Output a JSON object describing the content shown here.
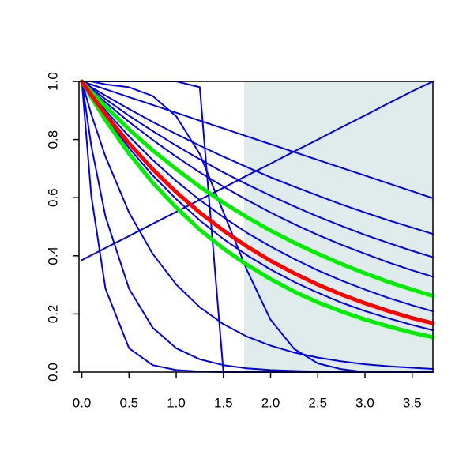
{
  "chart_data": {
    "type": "line",
    "xlim": [
      -0.03,
      3.72
    ],
    "ylim": [
      0,
      1
    ],
    "xticks": [
      {
        "value": 0,
        "label": "0.0"
      },
      {
        "value": 0.5,
        "label": "0.5"
      },
      {
        "value": 1,
        "label": "1.0"
      },
      {
        "value": 1.5,
        "label": "1.5"
      },
      {
        "value": 2,
        "label": "2.0"
      },
      {
        "value": 2.5,
        "label": "2.5"
      },
      {
        "value": 3,
        "label": "3.0"
      },
      {
        "value": 3.5,
        "label": "3.5"
      }
    ],
    "yticks": [
      {
        "value": 0,
        "label": "0.0"
      },
      {
        "value": 0.2,
        "label": "0.2"
      },
      {
        "value": 0.4,
        "label": "0.4"
      },
      {
        "value": 0.6,
        "label": "0.6"
      },
      {
        "value": 0.8,
        "label": "0.8"
      },
      {
        "value": 1,
        "label": "1.0"
      }
    ],
    "shaded_region": {
      "xmin": 1.72,
      "xmax": 3.72,
      "color": "#e0ecec"
    },
    "x": [
      0,
      0.1,
      0.25,
      0.5,
      0.75,
      1,
      1.25,
      1.5,
      1.75,
      2,
      2.25,
      2.5,
      2.75,
      3,
      3.25,
      3.5,
      3.72
    ],
    "series": [
      {
        "color": "#0000ee",
        "values": [
          1,
          0.98,
          0.951,
          0.905,
          0.861,
          0.819,
          0.779,
          0.741,
          0.705,
          0.67,
          0.638,
          0.607,
          0.577,
          0.549,
          0.522,
          0.497,
          0.475
        ]
      },
      {
        "color": "#0000ee",
        "values": [
          1,
          0.975,
          0.939,
          0.882,
          0.829,
          0.779,
          0.732,
          0.687,
          0.646,
          0.607,
          0.57,
          0.535,
          0.503,
          0.472,
          0.444,
          0.417,
          0.395
        ]
      },
      {
        "color": "#0000ee",
        "values": [
          1,
          0.97,
          0.928,
          0.861,
          0.799,
          0.741,
          0.687,
          0.638,
          0.592,
          0.549,
          0.509,
          0.472,
          0.438,
          0.407,
          0.377,
          0.35,
          0.328
        ]
      },
      {
        "color": "#0000ee",
        "values": [
          1,
          0.959,
          0.9,
          0.811,
          0.73,
          0.657,
          0.592,
          0.533,
          0.479,
          0.432,
          0.389,
          0.35,
          0.315,
          0.284,
          0.255,
          0.23,
          0.209
        ]
      },
      {
        "color": "#0000ee",
        "values": [
          1,
          0.949,
          0.878,
          0.771,
          0.677,
          0.595,
          0.522,
          0.458,
          0.402,
          0.353,
          0.31,
          0.273,
          0.239,
          0.21,
          0.185,
          0.162,
          0.144
        ]
      },
      {
        "color": "#0000ee",
        "values": [
          1,
          0.989,
          0.973,
          0.946,
          0.919,
          0.892,
          0.865,
          0.838,
          0.811,
          0.784,
          0.757,
          0.73,
          0.703,
          0.676,
          0.649,
          0.622,
          0.598
        ]
      },
      {
        "color": "#0000ee",
        "values": [
          0.385,
          0.402,
          0.427,
          0.468,
          0.51,
          0.551,
          0.593,
          0.634,
          0.676,
          0.717,
          0.759,
          0.8,
          0.842,
          0.883,
          0.925,
          0.966,
          1.0
        ]
      },
      {
        "color": "#0000ee",
        "values": [
          1,
          0.607,
          0.287,
          0.082,
          0.024,
          0.007,
          0.002,
          0,
          0,
          0,
          0,
          0,
          0,
          0,
          0,
          0,
          0
        ]
      },
      {
        "color": "#0000ee",
        "values": [
          1,
          0.779,
          0.535,
          0.287,
          0.153,
          0.082,
          0.044,
          0.024,
          0.013,
          0.007,
          0.004,
          0.002,
          0.001,
          0,
          0,
          0,
          0
        ]
      },
      {
        "color": "#0000ee",
        "values": [
          1,
          0.887,
          0.741,
          0.549,
          0.407,
          0.301,
          0.223,
          0.165,
          0.122,
          0.091,
          0.067,
          0.05,
          0.037,
          0.027,
          0.02,
          0.015,
          0.011
        ]
      },
      {
        "color": "#0000ee",
        "values": [
          1,
          1,
          0.99,
          0.98,
          0.95,
          0.88,
          0.75,
          0.55,
          0.35,
          0.18,
          0.08,
          0.03,
          0.01,
          0,
          0,
          0,
          0
        ]
      },
      {
        "color": "#0000ee",
        "values": [
          1,
          1,
          1,
          1,
          1,
          1,
          0.98,
          0,
          0,
          0,
          0,
          0,
          0,
          0,
          0,
          0,
          0
        ]
      },
      {
        "color": "#00ee00",
        "values": [
          1,
          0.965,
          0.914,
          0.835,
          0.763,
          0.698,
          0.638,
          0.583,
          0.533,
          0.487,
          0.445,
          0.407,
          0.372,
          0.34,
          0.31,
          0.284,
          0.262
        ]
      },
      {
        "color": "#00ee00",
        "values": [
          1,
          0.945,
          0.867,
          0.752,
          0.652,
          0.566,
          0.49,
          0.425,
          0.369,
          0.32,
          0.277,
          0.24,
          0.209,
          0.181,
          0.157,
          0.136,
          0.12
        ]
      },
      {
        "color": "#ff0000",
        "values": [
          1,
          0.953,
          0.887,
          0.787,
          0.698,
          0.619,
          0.549,
          0.487,
          0.432,
          0.383,
          0.34,
          0.301,
          0.267,
          0.237,
          0.21,
          0.186,
          0.168
        ]
      }
    ]
  }
}
